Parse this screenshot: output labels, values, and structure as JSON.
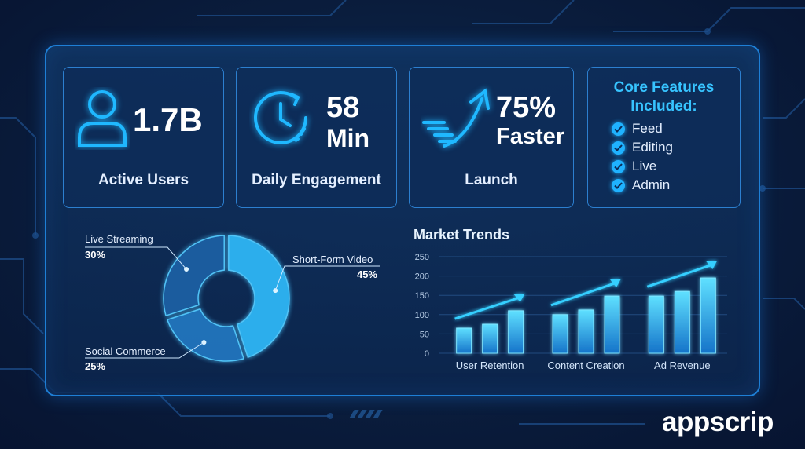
{
  "stats": [
    {
      "value": "1.7B",
      "label": "Active Users",
      "icon": "user-icon"
    },
    {
      "value_line1": "58",
      "value_line2": "Min",
      "label": "Daily Engagement",
      "icon": "clock-icon"
    },
    {
      "value_line1": "75%",
      "value_line2": "Faster",
      "label": "Launch",
      "icon": "trend-arrow-icon"
    }
  ],
  "features": {
    "title_line1": "Core Features",
    "title_line2": "Included:",
    "items": [
      "Feed",
      "Editing",
      "Live",
      "Admin"
    ]
  },
  "brand": "appscrip",
  "colors": {
    "accent": "#1fb2ff",
    "panel_border": "#1e7fd6",
    "background": "#0a1d3d"
  },
  "chart_data": [
    {
      "type": "pie",
      "title": "",
      "categories": [
        "Short-Form Video",
        "Social Commerce",
        "Live Streaming"
      ],
      "values": [
        45,
        25,
        30
      ],
      "value_labels": [
        "45%",
        "25%",
        "30%"
      ],
      "colors": [
        "#2fb6f5",
        "#2174bd",
        "#1a5ea3"
      ]
    },
    {
      "type": "bar",
      "title": "Market Trends",
      "categories": [
        "User Retention",
        "Content Creation",
        "Ad Revenue"
      ],
      "series": [
        {
          "values": [
            65,
            100,
            148
          ]
        },
        {
          "values": [
            75,
            112,
            160
          ]
        },
        {
          "values": [
            110,
            148,
            195
          ]
        }
      ],
      "ylim": [
        0,
        250
      ],
      "yticks": [
        "0",
        "50",
        "100",
        "150",
        "200",
        "250"
      ],
      "grid": true,
      "trend_arrows": true
    }
  ]
}
